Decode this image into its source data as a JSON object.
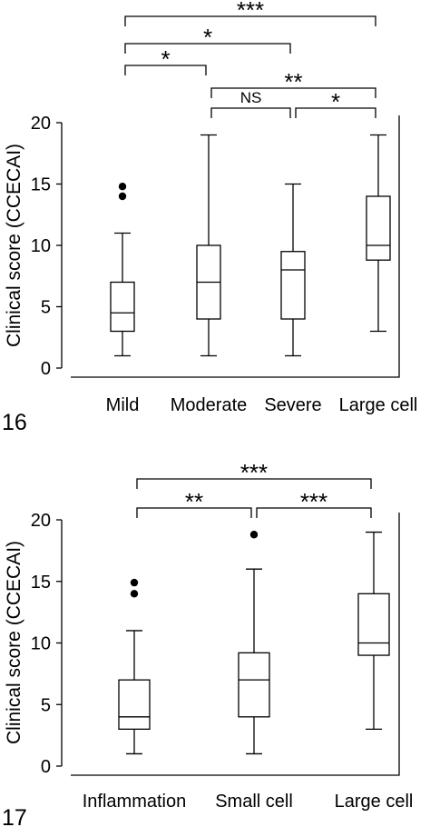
{
  "chart_data": [
    {
      "type": "box",
      "panel_label": "16",
      "ylabel": "Clinical score (CCECAI)",
      "ylim": [
        0,
        20
      ],
      "yticks": [
        0,
        5,
        10,
        15,
        20
      ],
      "categories": [
        "Mild",
        "Moderate",
        "Severe",
        "Large cell"
      ],
      "boxes": [
        {
          "category": "Mild",
          "whisker_low": 1,
          "q1": 3,
          "median": 4.5,
          "q3": 7,
          "whisker_high": 11,
          "outliers": [
            14,
            14.8
          ]
        },
        {
          "category": "Moderate",
          "whisker_low": 1,
          "q1": 4,
          "median": 7,
          "q3": 10,
          "whisker_high": 19,
          "outliers": []
        },
        {
          "category": "Severe",
          "whisker_low": 1,
          "q1": 4,
          "median": 8,
          "q3": 9.5,
          "whisker_high": 15,
          "outliers": []
        },
        {
          "category": "Large cell",
          "whisker_low": 3,
          "q1": 8.8,
          "median": 10,
          "q3": 14,
          "whisker_high": 19,
          "outliers": []
        }
      ],
      "comparisons": [
        {
          "from": 0,
          "to": 1,
          "label": "*"
        },
        {
          "from": 1,
          "to": 2,
          "label": "NS"
        },
        {
          "from": 2,
          "to": 3,
          "label": "*"
        },
        {
          "from": 1,
          "to": 3,
          "label": "**"
        },
        {
          "from": 0,
          "to": 2,
          "label": "*"
        },
        {
          "from": 0,
          "to": 3,
          "label": "***"
        }
      ]
    },
    {
      "type": "box",
      "panel_label": "17",
      "ylabel": "Clinical score (CCECAI)",
      "ylim": [
        0,
        20
      ],
      "yticks": [
        0,
        5,
        10,
        15,
        20
      ],
      "categories": [
        "Inflammation",
        "Small cell",
        "Large cell"
      ],
      "boxes": [
        {
          "category": "Inflammation",
          "whisker_low": 1,
          "q1": 3,
          "median": 4,
          "q3": 7,
          "whisker_high": 11,
          "outliers": [
            14,
            14.9
          ]
        },
        {
          "category": "Small cell",
          "whisker_low": 1,
          "q1": 4,
          "median": 7,
          "q3": 9.2,
          "whisker_high": 16,
          "outliers": [
            18.8
          ]
        },
        {
          "category": "Large cell",
          "whisker_low": 3,
          "q1": 9,
          "median": 10,
          "q3": 14,
          "whisker_high": 19,
          "outliers": []
        }
      ],
      "comparisons": [
        {
          "from": 0,
          "to": 1,
          "label": "**"
        },
        {
          "from": 1,
          "to": 2,
          "label": "***"
        },
        {
          "from": 0,
          "to": 2,
          "label": "***"
        }
      ]
    }
  ]
}
